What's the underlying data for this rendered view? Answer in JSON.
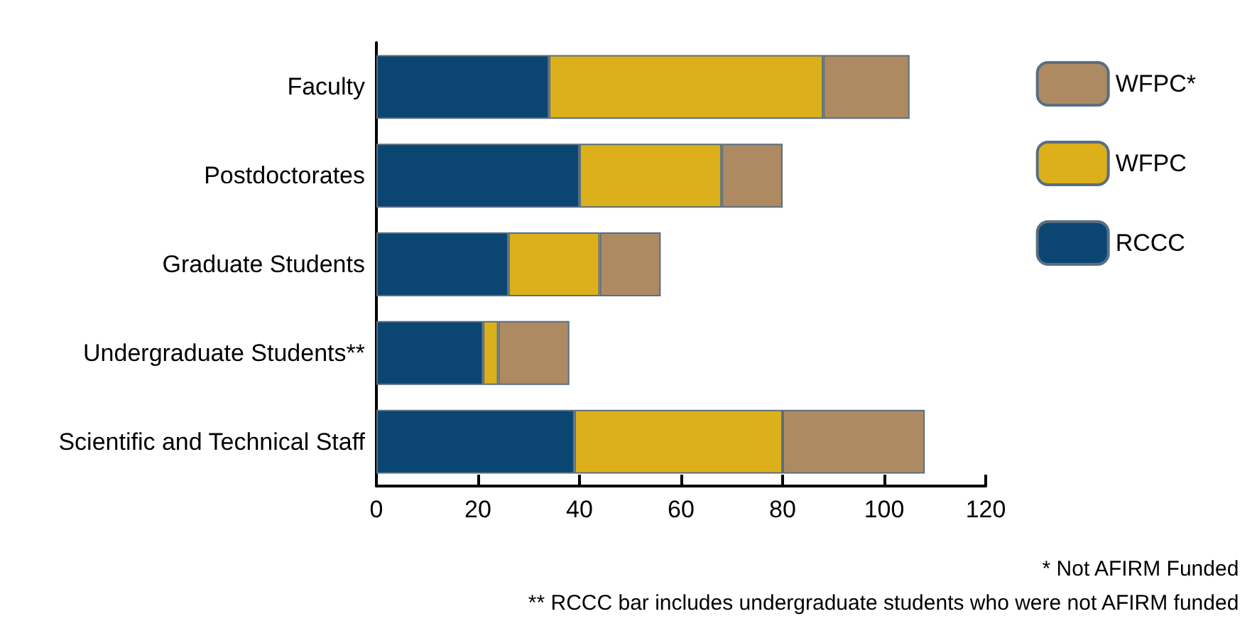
{
  "chart_data": {
    "type": "bar",
    "orientation": "horizontal",
    "stacked": true,
    "categories": [
      "Faculty",
      "Postdoctorates",
      "Graduate Students",
      "Undergraduate Students**",
      "Scientific and Technical Staff"
    ],
    "series": [
      {
        "name": "RCCC",
        "color": "#0b4572",
        "values": [
          34,
          40,
          26,
          21,
          39
        ]
      },
      {
        "name": "WFPC",
        "color": "#dcb01a",
        "values": [
          54,
          28,
          18,
          3,
          41
        ]
      },
      {
        "name": "WFPC*",
        "color": "#ae8a62",
        "values": [
          17,
          12,
          12,
          14,
          28
        ]
      }
    ],
    "xlim": [
      0,
      120
    ],
    "xticks": [
      0,
      20,
      40,
      60,
      80,
      100,
      120
    ],
    "grid": false,
    "legend": "top right",
    "annotations": [
      "* Not AFIRM Funded",
      "** RCCC bar includes undergraduate students who were not AFIRM funded"
    ]
  }
}
